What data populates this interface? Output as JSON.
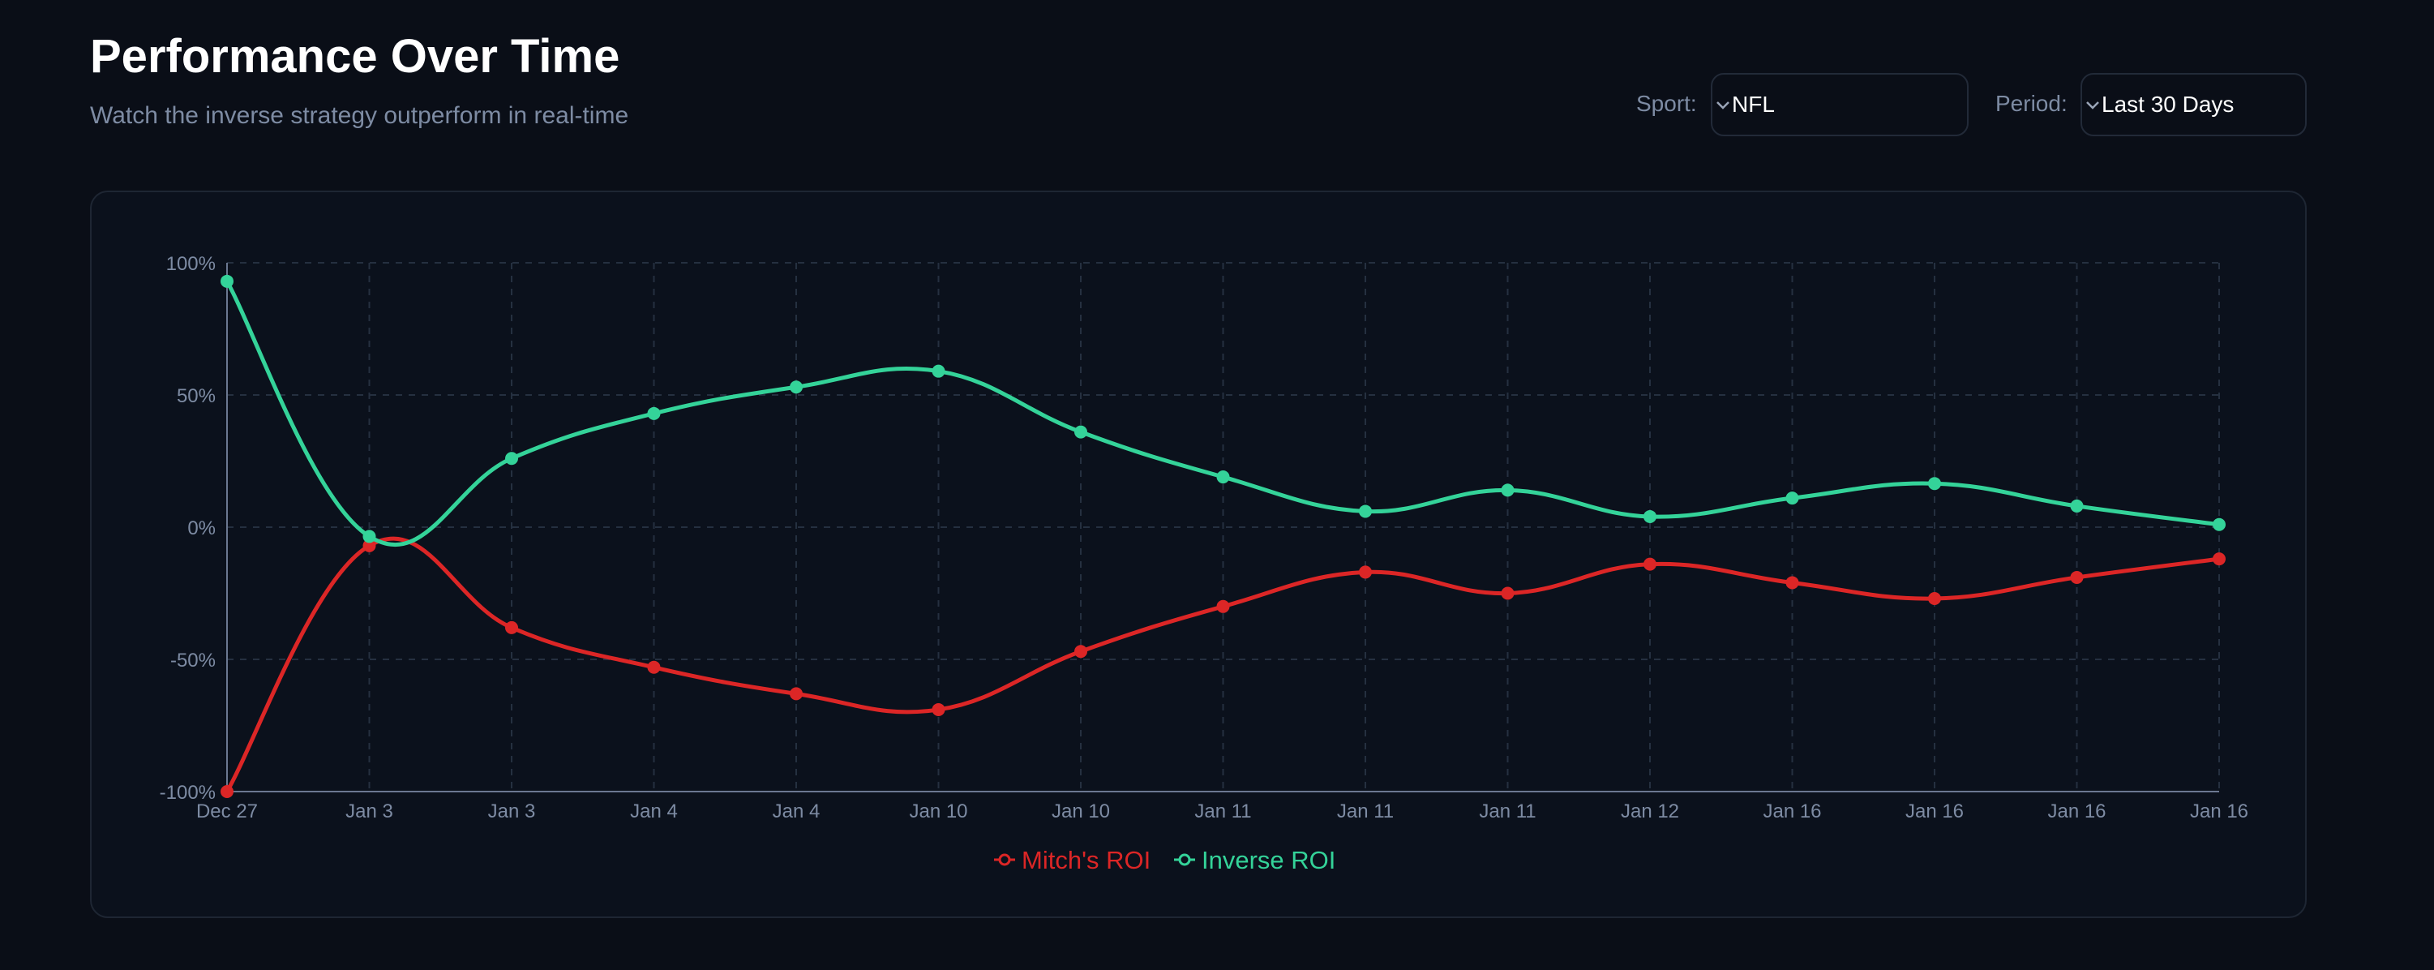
{
  "header": {
    "title": "Performance Over Time",
    "subtitle": "Watch the inverse strategy outperform in real-time"
  },
  "controls": {
    "sport_label": "Sport:",
    "sport_value": "NFL",
    "period_label": "Period:",
    "period_value": "Last 30 Days"
  },
  "chart_data": {
    "type": "line",
    "categories": [
      "Dec 27",
      "Jan 3",
      "Jan 3",
      "Jan 4",
      "Jan 4",
      "Jan 10",
      "Jan 10",
      "Jan 11",
      "Jan 11",
      "Jan 11",
      "Jan 12",
      "Jan 16",
      "Jan 16",
      "Jan 16",
      "Jan 16"
    ],
    "y_ticks": [
      "100%",
      "50%",
      "0%",
      "-50%",
      "-100%"
    ],
    "ylim": [
      -100,
      100
    ],
    "grid": true,
    "legend_position": "bottom",
    "series": [
      {
        "name": "Mitch's ROI",
        "color": "#dc2626",
        "values": [
          -100,
          -7,
          -38,
          -53,
          -63,
          -69,
          -47,
          -30,
          -17,
          -25,
          -14,
          -21,
          -27,
          -19,
          -12
        ]
      },
      {
        "name": "Inverse ROI",
        "color": "#34d399",
        "values": [
          93,
          -3.5,
          26,
          43,
          53,
          59,
          36,
          19,
          6,
          14,
          4,
          11,
          16.5,
          8,
          1
        ]
      }
    ]
  }
}
